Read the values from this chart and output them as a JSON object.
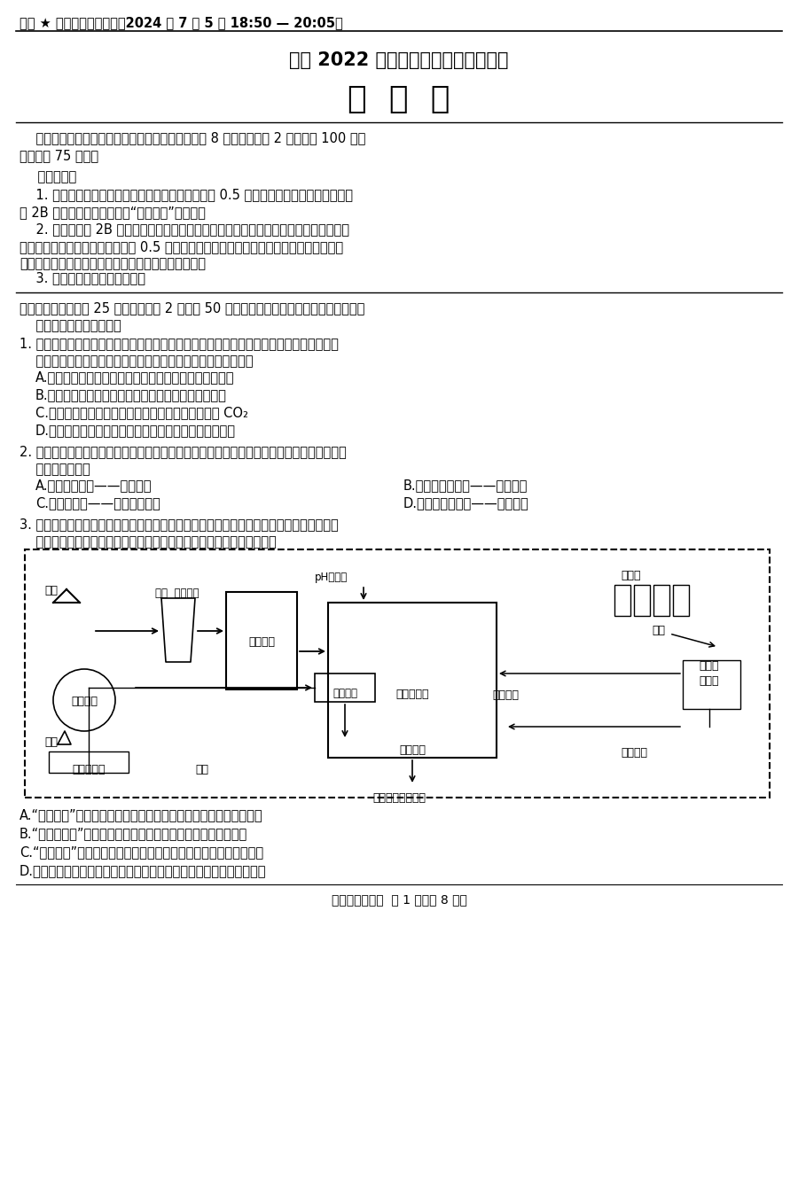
{
  "bg_color": "#ffffff",
  "text_color": "#000000",
  "header_line": "保密 ★ 启用前【考试时间：2024 年 7 月 5 日 18:50 — 20:05】",
  "title1": "高中 2022 级第二学年末教学质量测试",
  "title2": "生  物  学",
  "footer": "高二生物试题卷  第 1 页（共 8 页）"
}
